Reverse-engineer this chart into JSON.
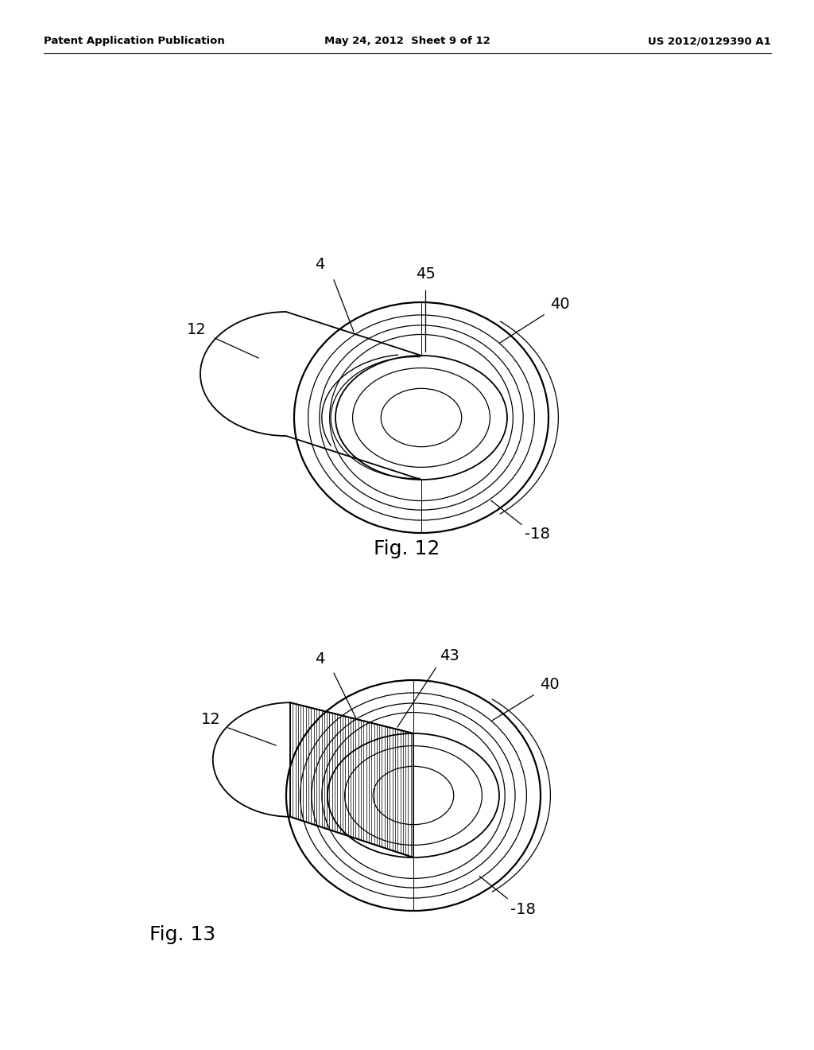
{
  "background_color": "#ffffff",
  "header_left": "Patent Application Publication",
  "header_mid": "May 24, 2012  Sheet 9 of 12",
  "header_right": "US 2012/0129390 A1",
  "fig12_label": "Fig. 12",
  "fig13_label": "Fig. 13",
  "line_color": "#000000"
}
